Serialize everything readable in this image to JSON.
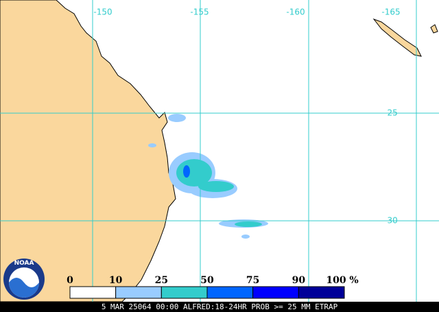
{
  "map": {
    "lon_labels": [
      "-150",
      "-155",
      "-160",
      "-165"
    ],
    "lat_labels": [
      "-25",
      "-30"
    ],
    "legend": {
      "ticks": [
        "0",
        "10",
        "25",
        "50",
        "75",
        "90",
        "100"
      ],
      "unit": "%",
      "colors": [
        "#ffffff",
        "#99ccff",
        "#33cccc",
        "#0066ff",
        "#0000ff",
        "#000099"
      ]
    },
    "logo": "NOAA",
    "caption": "5 MAR 25064 00:00 ALFRED:18-24HR PROB >= 25 MM ETRAP"
  }
}
